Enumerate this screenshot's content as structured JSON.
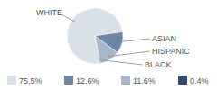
{
  "chart_data": {
    "type": "pie",
    "categories": [
      "WHITE",
      "ASIAN",
      "HISPANIC",
      "BLACK"
    ],
    "values": [
      75.5,
      12.6,
      11.6,
      0.4
    ],
    "value_labels": [
      "75.5%",
      "12.6%",
      "11.6%",
      "0.4%"
    ],
    "colors": [
      "#d9e0e7",
      "#6c88a6",
      "#a8b8c9",
      "#2f4e6e"
    ]
  }
}
